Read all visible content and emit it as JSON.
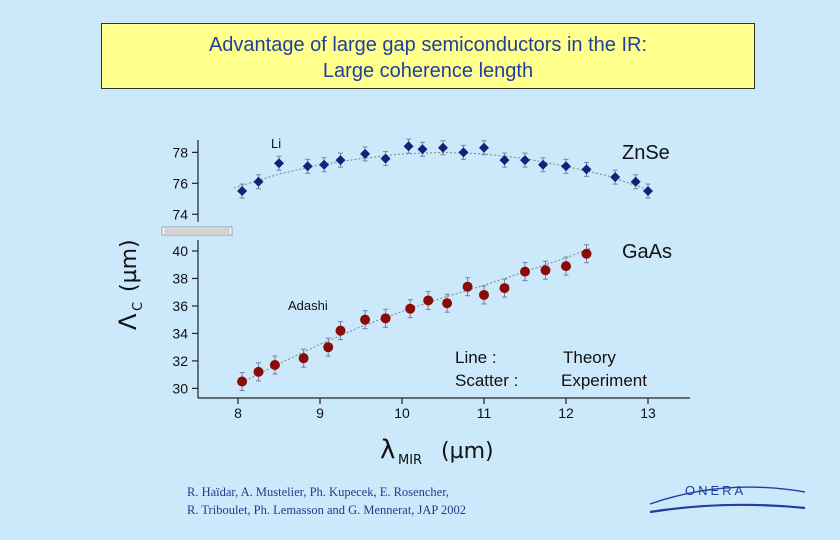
{
  "title": {
    "line1": "Advantage of large gap semiconductors in the IR:",
    "line2": "Large coherence length"
  },
  "colors": {
    "background": "#cbe9fb",
    "title_bg": "#ffff8c",
    "title_text": "#1f3fa0",
    "znse": "#14217a",
    "gaas": "#8b0a0a",
    "errorbar": "#7f7f9a",
    "theory_line": "#8a8a8a"
  },
  "chart_data": {
    "type": "scatter",
    "xlabel_main": "λ",
    "xlabel_sub": "MIR",
    "xlabel_unit": "(µm)",
    "ylabel_main": "Λ",
    "ylabel_sub": "C",
    "ylabel_unit": "(µm)",
    "xlim": [
      7.5,
      13.5
    ],
    "xticks": [
      "8",
      "9",
      "10",
      "11",
      "12",
      "13"
    ],
    "xtick_values": [
      8,
      9,
      10,
      11,
      12,
      13
    ],
    "upper_panel": {
      "ylim": [
        73.5,
        78.8
      ],
      "yticks": [
        "74",
        "76",
        "78"
      ],
      "ytick_values": [
        74,
        76,
        78
      ]
    },
    "lower_panel": {
      "ylim": [
        29.3,
        40.8
      ],
      "yticks": [
        "30",
        "32",
        "34",
        "36",
        "38",
        "40"
      ],
      "ytick_values": [
        30,
        32,
        34,
        36,
        38,
        40
      ]
    },
    "series": [
      {
        "name": "ZnSe",
        "theory_label": "Li",
        "panel": "upper",
        "marker": "diamond",
        "x": [
          8.05,
          8.25,
          8.5,
          8.85,
          9.05,
          9.25,
          9.55,
          9.8,
          10.08,
          10.25,
          10.5,
          10.75,
          11.0,
          11.25,
          11.5,
          11.72,
          12.0,
          12.25,
          12.6,
          12.85,
          13.0
        ],
        "y": [
          75.5,
          76.1,
          77.3,
          77.1,
          77.2,
          77.5,
          77.9,
          77.6,
          78.4,
          78.2,
          78.3,
          78.0,
          78.3,
          77.5,
          77.5,
          77.2,
          77.1,
          76.9,
          76.4,
          76.1,
          75.5
        ],
        "theory": {
          "x": [
            7.95,
            8.5,
            9.0,
            9.5,
            10.0,
            10.5,
            11.0,
            11.5,
            12.0,
            12.5,
            13.05
          ],
          "y": [
            75.7,
            76.6,
            77.2,
            77.6,
            77.9,
            78.0,
            77.9,
            77.6,
            77.1,
            76.5,
            75.5
          ]
        }
      },
      {
        "name": "GaAs",
        "theory_label": "Adashi",
        "panel": "lower",
        "marker": "circle",
        "x": [
          8.05,
          8.25,
          8.45,
          8.8,
          9.1,
          9.25,
          9.55,
          9.8,
          10.1,
          10.32,
          10.55,
          10.8,
          11.0,
          11.25,
          11.5,
          11.75,
          12.0,
          12.25
        ],
        "y": [
          30.5,
          31.2,
          31.7,
          32.2,
          33.0,
          34.2,
          35.0,
          35.1,
          35.8,
          36.4,
          36.2,
          37.4,
          36.8,
          37.3,
          38.5,
          38.6,
          38.9,
          39.8
        ],
        "theory": {
          "x": [
            8.0,
            8.5,
            9.0,
            9.5,
            10.0,
            10.5,
            11.0,
            11.5,
            12.0,
            12.3
          ],
          "y": [
            30.3,
            31.8,
            33.2,
            34.5,
            35.6,
            36.6,
            37.5,
            38.5,
            39.5,
            40.2
          ]
        }
      }
    ],
    "legend": {
      "line_label": "Line :",
      "line_meaning": "Theory",
      "scatter_label": "Scatter :",
      "scatter_meaning": "Experiment"
    }
  },
  "citation": {
    "line1": "R. Haïdar, A. Mustelier, Ph. Kupecek, E. Rosencher,",
    "line2": "R. Triboulet, Ph. Lemasson and G. Mennerat, JAP 2002"
  },
  "logo": {
    "text": "ONERA"
  }
}
